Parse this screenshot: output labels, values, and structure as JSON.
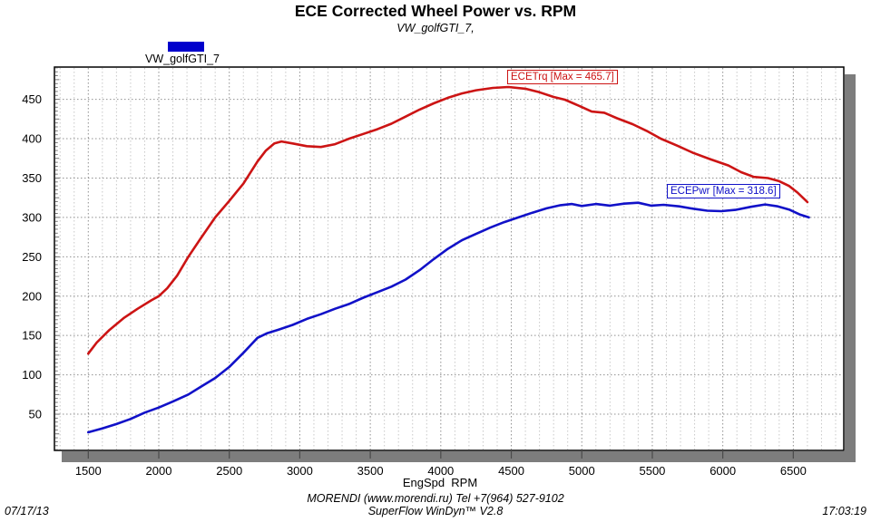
{
  "title": "ECE Corrected Wheel Power vs. RPM",
  "subtitle": "VW_golfGTI_7,",
  "legend": {
    "label": "VW_golfGTI_7",
    "swatch_color": "#0000cc"
  },
  "xlabel": "EngSpd  RPM",
  "footer": {
    "center1": "MORENDI (www.morendi.ru) Tel +7(964) 527-9102",
    "center2": "SuperFlow WinDyn™ V2.8",
    "date": "07/17/13",
    "time": "17:03:19"
  },
  "colors": {
    "torque": "#cc1414",
    "power": "#1111c8",
    "grid_major": "#909090",
    "grid_minor": "#c8c8c8",
    "border": "#000000",
    "shadow": "#7d7d7d"
  },
  "chart_data": {
    "type": "line",
    "title": "ECE Corrected Wheel Power vs. RPM",
    "subtitle": "VW_golfGTI_7,",
    "xlabel": "EngSpd RPM",
    "legend_position": "top-left",
    "grid": true,
    "x_range": [
      1260,
      6858
    ],
    "y_range": [
      4,
      491
    ],
    "x_ticks": [
      1500,
      2000,
      2500,
      3000,
      3500,
      4000,
      4500,
      5000,
      5500,
      6000,
      6500
    ],
    "x_minor_step": 100,
    "x_minor_range": [
      1300,
      6800
    ],
    "y_ticks": [
      50,
      100,
      150,
      200,
      250,
      300,
      350,
      400,
      450
    ],
    "series": [
      {
        "name": "ECETrq",
        "label": "ECETrq [Max = 465.7]",
        "max": 465.7,
        "color": "#cc1414",
        "points": [
          [
            1500,
            127
          ],
          [
            1560,
            141
          ],
          [
            1650,
            157
          ],
          [
            1750,
            172
          ],
          [
            1850,
            184
          ],
          [
            1950,
            195
          ],
          [
            2000,
            200
          ],
          [
            2060,
            210
          ],
          [
            2130,
            226
          ],
          [
            2210,
            250
          ],
          [
            2300,
            274
          ],
          [
            2400,
            300
          ],
          [
            2500,
            321
          ],
          [
            2600,
            343
          ],
          [
            2700,
            371
          ],
          [
            2760,
            385
          ],
          [
            2820,
            394
          ],
          [
            2870,
            396.5
          ],
          [
            2950,
            394
          ],
          [
            3050,
            390.5
          ],
          [
            3150,
            389.5
          ],
          [
            3250,
            393
          ],
          [
            3350,
            400
          ],
          [
            3450,
            406
          ],
          [
            3550,
            412
          ],
          [
            3650,
            419
          ],
          [
            3750,
            428
          ],
          [
            3850,
            437
          ],
          [
            3950,
            445
          ],
          [
            4050,
            452
          ],
          [
            4150,
            457.5
          ],
          [
            4250,
            461.5
          ],
          [
            4370,
            464.5
          ],
          [
            4480,
            465.7
          ],
          [
            4600,
            463.5
          ],
          [
            4700,
            459
          ],
          [
            4800,
            453
          ],
          [
            4880,
            449.5
          ],
          [
            4990,
            441
          ],
          [
            5070,
            434.5
          ],
          [
            5160,
            433
          ],
          [
            5250,
            426
          ],
          [
            5360,
            418.5
          ],
          [
            5460,
            410
          ],
          [
            5560,
            400
          ],
          [
            5680,
            391
          ],
          [
            5790,
            382
          ],
          [
            5910,
            374
          ],
          [
            6040,
            366
          ],
          [
            6130,
            357.5
          ],
          [
            6220,
            351.5
          ],
          [
            6320,
            350
          ],
          [
            6400,
            346
          ],
          [
            6470,
            340
          ],
          [
            6530,
            331.5
          ],
          [
            6600,
            319.5
          ]
        ]
      },
      {
        "name": "ECEPwr",
        "label": "ECEPwr [Max = 318.6]",
        "max": 318.6,
        "color": "#1111c8",
        "points": [
          [
            1500,
            27
          ],
          [
            1600,
            32
          ],
          [
            1700,
            37.5
          ],
          [
            1800,
            44
          ],
          [
            1900,
            52
          ],
          [
            2000,
            58.5
          ],
          [
            2100,
            66
          ],
          [
            2210,
            75
          ],
          [
            2300,
            85
          ],
          [
            2400,
            96
          ],
          [
            2500,
            110
          ],
          [
            2600,
            128
          ],
          [
            2700,
            147
          ],
          [
            2770,
            153
          ],
          [
            2850,
            157.5
          ],
          [
            2950,
            163.5
          ],
          [
            3050,
            171
          ],
          [
            3150,
            177
          ],
          [
            3250,
            184
          ],
          [
            3350,
            190
          ],
          [
            3450,
            198
          ],
          [
            3550,
            205
          ],
          [
            3650,
            212
          ],
          [
            3750,
            221
          ],
          [
            3850,
            233
          ],
          [
            3950,
            247
          ],
          [
            4050,
            260
          ],
          [
            4150,
            271
          ],
          [
            4250,
            279
          ],
          [
            4350,
            287
          ],
          [
            4450,
            294
          ],
          [
            4550,
            300
          ],
          [
            4650,
            306
          ],
          [
            4750,
            311.5
          ],
          [
            4850,
            315.5
          ],
          [
            4930,
            317
          ],
          [
            5000,
            314.5
          ],
          [
            5100,
            317
          ],
          [
            5200,
            315
          ],
          [
            5300,
            317.5
          ],
          [
            5400,
            318.6
          ],
          [
            5490,
            315
          ],
          [
            5580,
            316
          ],
          [
            5690,
            314
          ],
          [
            5790,
            311
          ],
          [
            5890,
            308.5
          ],
          [
            5990,
            308
          ],
          [
            6090,
            309.5
          ],
          [
            6200,
            313.5
          ],
          [
            6300,
            316.5
          ],
          [
            6390,
            314
          ],
          [
            6470,
            310
          ],
          [
            6550,
            303.5
          ],
          [
            6610,
            300
          ]
        ]
      }
    ]
  }
}
